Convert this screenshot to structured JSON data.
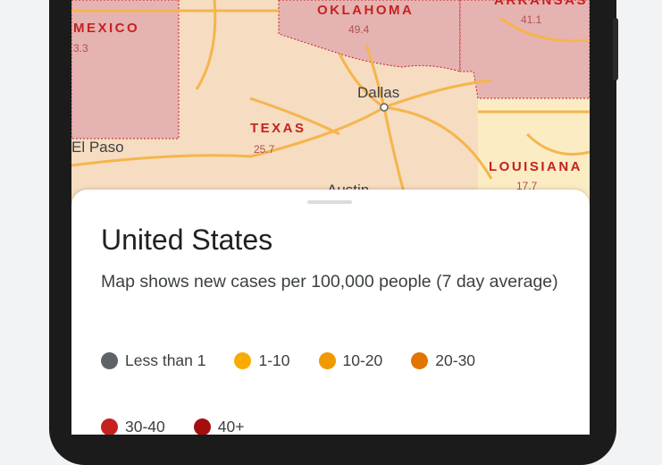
{
  "map": {
    "regions": [
      {
        "name": "MEXICO",
        "value": "3.3"
      },
      {
        "name": "OKLAHOMA",
        "value": "49.4"
      },
      {
        "name": "ARKANSAS",
        "value": "41.1"
      },
      {
        "name": "TEXAS",
        "value": "25.7"
      },
      {
        "name": "LOUISIANA",
        "value": "17.7"
      }
    ],
    "cities": [
      "Dallas",
      "El Paso",
      "Austin"
    ]
  },
  "panel": {
    "title": "United States",
    "description": "Map shows new cases per 100,000 people (7 day average)",
    "legend": [
      {
        "label": "Less than 1",
        "color": "#5f6368"
      },
      {
        "label": "1-10",
        "color": "#f9ab00"
      },
      {
        "label": "10-20",
        "color": "#f29900"
      },
      {
        "label": "20-30",
        "color": "#e37400"
      },
      {
        "label": "30-40",
        "color": "#c5221f"
      },
      {
        "label": "40+",
        "color": "#a50e0e"
      }
    ]
  }
}
